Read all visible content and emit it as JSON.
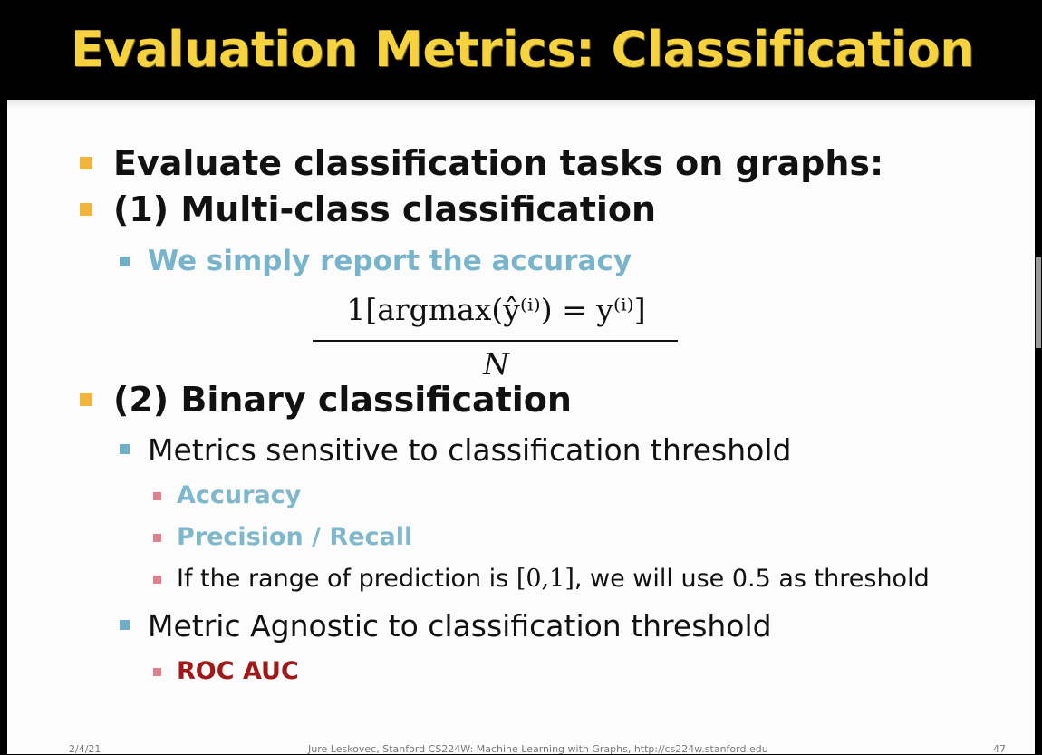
{
  "title": "Evaluation Metrics: Classification",
  "bullets": {
    "b1": "Evaluate classification tasks on graphs:",
    "b2": "(1) Multi-class classification",
    "b2_sub": "We simply report the accuracy",
    "formula": {
      "numerator": "1[argmax(ŷ⁽ⁱ⁾) = y⁽ⁱ⁾]",
      "denominator": "N"
    },
    "b3": "(2) Binary classification",
    "b3_sub1": "Metrics sensitive to classification threshold",
    "b3_sub1_items": [
      "Accuracy",
      "Precision / Recall"
    ],
    "b3_sub1_note_pre": "If the range of prediction is ",
    "b3_sub1_note_math": "[0,1]",
    "b3_sub1_note_post": ", we will use 0.5 as threshold",
    "b3_sub2": "Metric Agnostic to classification threshold",
    "b3_sub2_item": "ROC AUC"
  },
  "footer": {
    "date": "2/4/21",
    "credit": "Jure Leskovec, Stanford CS224W: Machine Learning with Graphs, http://cs224w.stanford.edu",
    "page": "47"
  },
  "colors": {
    "title": "#f6d33e",
    "bullet_l1": "#f0b53a",
    "bullet_l2": "#6fb0c9",
    "bullet_l3": "#e0808d",
    "highlight_blue": "#78b4cb",
    "highlight_red": "#a01818"
  }
}
